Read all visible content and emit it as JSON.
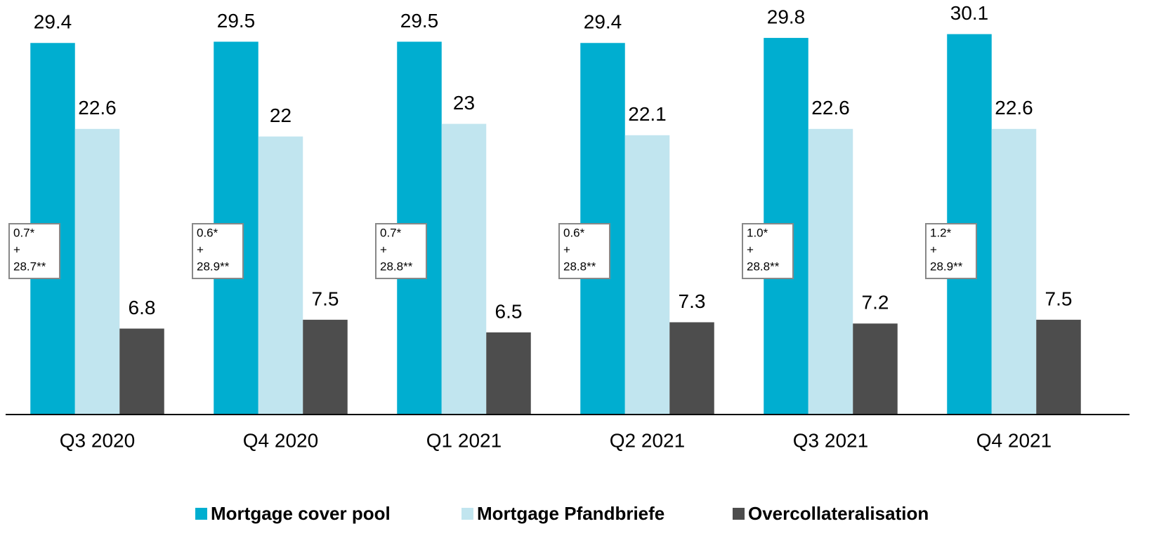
{
  "chart_data": {
    "type": "bar",
    "categories": [
      "Q3 2020",
      "Q4 2020",
      "Q1 2021",
      "Q2 2021",
      "Q3 2021",
      "Q4 2021"
    ],
    "series": [
      {
        "name": "Mortgage cover pool",
        "color": "#00aed0",
        "values": [
          29.4,
          29.5,
          29.5,
          29.4,
          29.8,
          30.1
        ]
      },
      {
        "name": "Mortgage Pfandbriefe",
        "color": "#c1e5ef",
        "values": [
          22.6,
          22.0,
          23.0,
          22.1,
          22.6,
          22.6
        ]
      },
      {
        "name": "Overcollateralisation",
        "color": "#4d4d4d",
        "values": [
          6.8,
          7.5,
          6.5,
          7.3,
          7.2,
          7.5
        ]
      }
    ],
    "annotations": [
      [
        "0.7*",
        "+",
        "28.7**"
      ],
      [
        "0.6*",
        "+",
        "28.9**"
      ],
      [
        "0.7*",
        "+",
        "28.8**"
      ],
      [
        "0.6*",
        "+",
        "28.8**"
      ],
      [
        "1.0*",
        "+",
        "28.8**"
      ],
      [
        "1.2*",
        "+",
        "28.9**"
      ]
    ],
    "ylim": [
      0,
      32.8
    ],
    "legend": "bottom"
  }
}
